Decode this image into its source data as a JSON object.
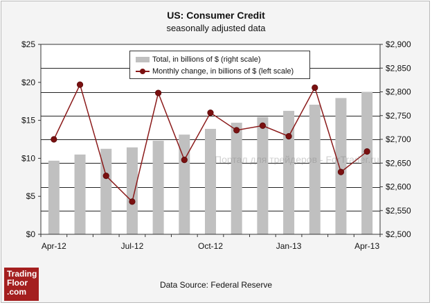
{
  "chart_data": {
    "type": "bar+line",
    "title": "US: Consumer Credit",
    "subtitle": "seasonally adjusted data",
    "categories": [
      "Apr-12",
      "May-12",
      "Jun-12",
      "Jul-12",
      "Aug-12",
      "Sep-12",
      "Oct-12",
      "Nov-12",
      "Dec-12",
      "Jan-13",
      "Feb-13",
      "Mar-13",
      "Apr-13"
    ],
    "x_tick_labels": [
      "Apr-12",
      "Jul-12",
      "Oct-12",
      "Jan-13",
      "Apr-13"
    ],
    "x_tick_indices": [
      0,
      3,
      6,
      9,
      12
    ],
    "series": [
      {
        "name": "Total, in billions of $ (right scale)",
        "type": "bar",
        "axis": "right",
        "values": [
          2655,
          2668,
          2680,
          2683,
          2697,
          2710,
          2722,
          2735,
          2747,
          2760,
          2773,
          2787,
          2800
        ]
      },
      {
        "name": "Monthly change, in billions of $ (left scale)",
        "type": "line",
        "axis": "left",
        "values": [
          12.5,
          19.7,
          7.7,
          4.3,
          18.6,
          9.8,
          16.0,
          13.7,
          14.3,
          12.9,
          19.3,
          8.2,
          10.9
        ]
      }
    ],
    "left_axis": {
      "ylim": [
        0,
        25
      ],
      "ticks": [
        0,
        5,
        10,
        15,
        20,
        25
      ],
      "tick_labels": [
        "$0",
        "$5",
        "$10",
        "$15",
        "$20",
        "$25"
      ]
    },
    "right_axis": {
      "ylim": [
        2500,
        2900
      ],
      "ticks": [
        2500,
        2550,
        2600,
        2650,
        2700,
        2750,
        2800,
        2850,
        2900
      ],
      "tick_labels": [
        "$2,500",
        "$2,550",
        "$2,600",
        "$2,650",
        "$2,700",
        "$2,750",
        "$2,800",
        "$2,850",
        "$2,900"
      ]
    },
    "legend_position": "top-center",
    "grid": true
  },
  "legend": {
    "bar_label": "Total, in billions of $ (right scale)",
    "line_label": "Monthly change, in billions of $ (left scale)"
  },
  "source": "Data Source: Federal Reserve",
  "watermark": "Портал для трейдеров - ForTrader.ru",
  "logo": {
    "line1": "Trading",
    "line2": "Floor",
    "line3": ".com"
  },
  "colors": {
    "bar": "#c0c0c0",
    "line": "#8b1a1a",
    "marker": "#7a1010",
    "logo_bg": "#a41f1f"
  }
}
